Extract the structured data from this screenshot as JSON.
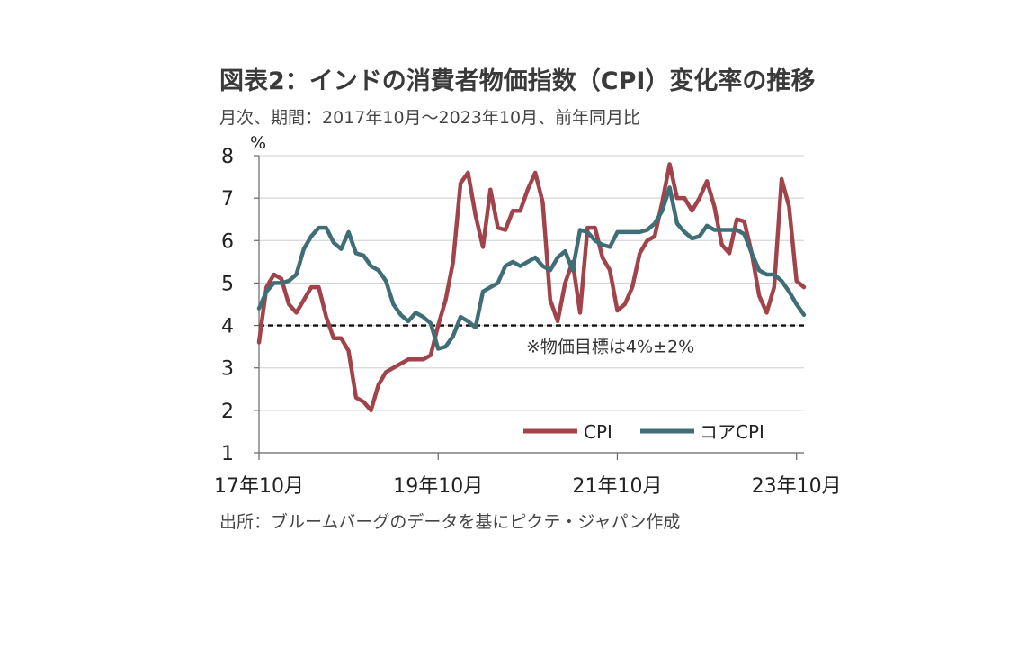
{
  "title": "図表2：インドの消費者物価指数（CPI）変化率の推移",
  "subtitle": "月次、期間：2017年10月～2023年10月、前年同月比",
  "source": "出所：ブルームバーグのデータを基にピクテ・ジャパン作成",
  "colors": {
    "cpi": "#a0434a",
    "core_cpi": "#3f6e76",
    "grid": "#d6d6d6",
    "target": "#111111"
  },
  "chart_data": {
    "type": "line",
    "title": "図表2：インドの消費者物価指数（CPI）変化率の推移",
    "subtitle": "月次、期間：2017年10月～2023年10月、前年同月比",
    "ylabel": "%",
    "ylim": [
      1,
      8
    ],
    "yticks": [
      1,
      2,
      3,
      4,
      5,
      6,
      7,
      8
    ],
    "xlim": [
      0,
      73
    ],
    "xticks": [
      {
        "index": 0,
        "label": "17年10月"
      },
      {
        "index": 24,
        "label": "19年10月"
      },
      {
        "index": 48,
        "label": "21年10月"
      },
      {
        "index": 72,
        "label": "23年10月"
      }
    ],
    "grid": true,
    "legend_position": "bottom-right",
    "reference_line": {
      "y": 4,
      "style": "dashed",
      "label": "※物価目標は4%±2%"
    },
    "series": [
      {
        "name": "CPI",
        "color": "#a0434a",
        "values": [
          3.6,
          4.9,
          5.2,
          5.1,
          4.5,
          4.3,
          4.6,
          4.9,
          4.9,
          4.2,
          3.7,
          3.7,
          3.4,
          2.3,
          2.2,
          2.0,
          2.6,
          2.9,
          3.0,
          3.1,
          3.2,
          3.2,
          3.2,
          3.3,
          4.0,
          4.6,
          5.5,
          7.35,
          7.6,
          6.6,
          5.85,
          7.2,
          6.3,
          6.25,
          6.7,
          6.7,
          7.2,
          7.6,
          6.9,
          4.6,
          4.1,
          5.0,
          5.5,
          4.3,
          6.3,
          6.3,
          5.6,
          5.3,
          4.35,
          4.5,
          4.9,
          5.7,
          6.0,
          6.1,
          6.9,
          7.8,
          7.0,
          7.0,
          6.7,
          7.0,
          7.4,
          6.8,
          5.9,
          5.7,
          6.5,
          6.45,
          5.7,
          4.7,
          4.3,
          4.9,
          7.45,
          6.8,
          5.05,
          4.9
        ]
      },
      {
        "name": "コアCPI",
        "color": "#3f6e76",
        "values": [
          4.4,
          4.8,
          5.0,
          5.0,
          5.05,
          5.2,
          5.8,
          6.1,
          6.3,
          6.3,
          5.95,
          5.8,
          6.2,
          5.7,
          5.65,
          5.4,
          5.3,
          5.05,
          4.5,
          4.25,
          4.1,
          4.3,
          4.2,
          4.05,
          3.45,
          3.5,
          3.75,
          4.2,
          4.1,
          3.95,
          4.8,
          4.9,
          5.0,
          5.4,
          5.5,
          5.4,
          5.5,
          5.6,
          5.4,
          5.3,
          5.6,
          5.75,
          5.3,
          6.25,
          6.2,
          6.0,
          5.9,
          5.85,
          6.2,
          6.2,
          6.2,
          6.2,
          6.25,
          6.4,
          6.7,
          7.25,
          6.4,
          6.2,
          6.05,
          6.1,
          6.35,
          6.25,
          6.25,
          6.25,
          6.25,
          6.15,
          5.7,
          5.3,
          5.2,
          5.2,
          5.05,
          4.8,
          4.5,
          4.25
        ]
      }
    ]
  }
}
